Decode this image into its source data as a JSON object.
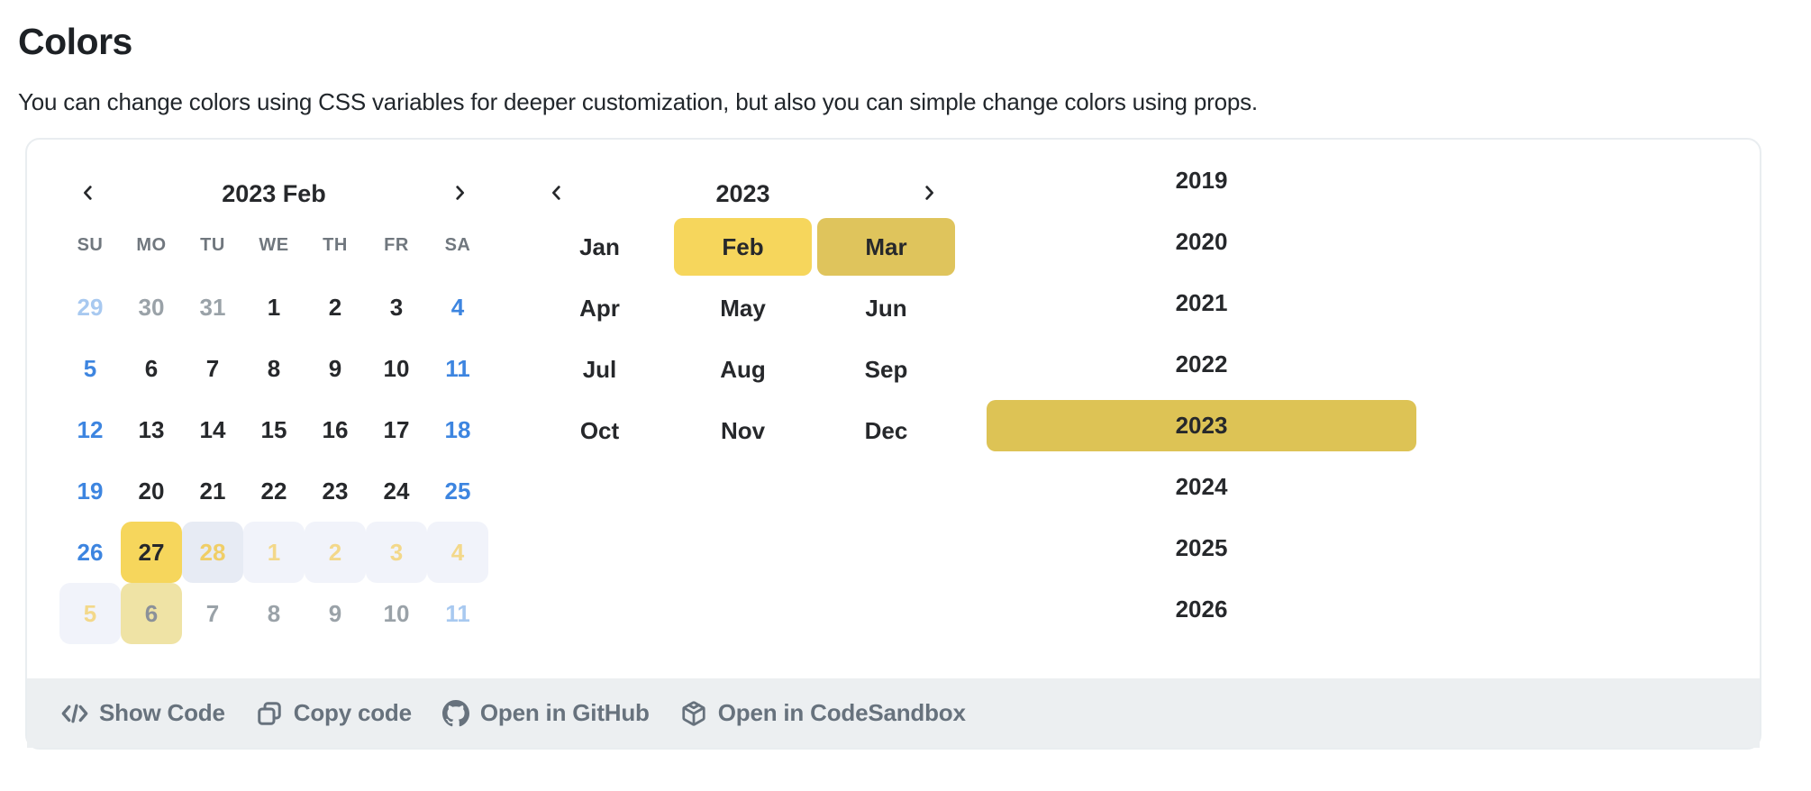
{
  "page": {
    "title": "Colors",
    "description": "You can change colors using CSS variables for deeper customization, but also you can simple change colors using props."
  },
  "colors": {
    "accent_yellow": "#f6d65c",
    "accent_khaki": "#ddc355",
    "month_end_yellow": "#dfc45c",
    "range_first_bg": "#e7ebf4",
    "range_mid_bg": "#f1f3fa",
    "range_end_bg": "#efe3a5",
    "weekend_blue": "#3d85e0",
    "muted_weekend_blue": "#a8c9f0",
    "muted_gray": "#9aa2a8",
    "toolbar_bg": "#eceff1",
    "toolbar_text": "#67727d"
  },
  "day_calendar": {
    "prev_icon": "chevron-left-icon",
    "next_icon": "chevron-right-icon",
    "title": "2023 Feb",
    "weekdays": [
      "SU",
      "MO",
      "TU",
      "WE",
      "TH",
      "FR",
      "SA"
    ],
    "cells": [
      {
        "label": "29",
        "type": "muted-weekend"
      },
      {
        "label": "30",
        "type": "muted"
      },
      {
        "label": "31",
        "type": "muted"
      },
      {
        "label": "1",
        "type": "day"
      },
      {
        "label": "2",
        "type": "day"
      },
      {
        "label": "3",
        "type": "day"
      },
      {
        "label": "4",
        "type": "weekend"
      },
      {
        "label": "5",
        "type": "weekend"
      },
      {
        "label": "6",
        "type": "day"
      },
      {
        "label": "7",
        "type": "day"
      },
      {
        "label": "8",
        "type": "day"
      },
      {
        "label": "9",
        "type": "day"
      },
      {
        "label": "10",
        "type": "day"
      },
      {
        "label": "11",
        "type": "weekend"
      },
      {
        "label": "12",
        "type": "weekend"
      },
      {
        "label": "13",
        "type": "day"
      },
      {
        "label": "14",
        "type": "day"
      },
      {
        "label": "15",
        "type": "day"
      },
      {
        "label": "16",
        "type": "day"
      },
      {
        "label": "17",
        "type": "day"
      },
      {
        "label": "18",
        "type": "weekend"
      },
      {
        "label": "19",
        "type": "weekend"
      },
      {
        "label": "20",
        "type": "day"
      },
      {
        "label": "21",
        "type": "day"
      },
      {
        "label": "22",
        "type": "day"
      },
      {
        "label": "23",
        "type": "day"
      },
      {
        "label": "24",
        "type": "day"
      },
      {
        "label": "25",
        "type": "weekend"
      },
      {
        "label": "26",
        "type": "weekend"
      },
      {
        "label": "27",
        "type": "range-start"
      },
      {
        "label": "28",
        "type": "range-first"
      },
      {
        "label": "1",
        "type": "range-mid"
      },
      {
        "label": "2",
        "type": "range-mid"
      },
      {
        "label": "3",
        "type": "range-mid"
      },
      {
        "label": "4",
        "type": "range-mid"
      },
      {
        "label": "5",
        "type": "range-mid"
      },
      {
        "label": "6",
        "type": "range-end"
      },
      {
        "label": "7",
        "type": "muted"
      },
      {
        "label": "8",
        "type": "muted"
      },
      {
        "label": "9",
        "type": "muted"
      },
      {
        "label": "10",
        "type": "muted"
      },
      {
        "label": "11",
        "type": "muted-weekend"
      }
    ]
  },
  "month_calendar": {
    "prev_icon": "chevron-left-icon",
    "next_icon": "chevron-right-icon",
    "title": "2023",
    "months": [
      {
        "label": "Jan",
        "state": "normal"
      },
      {
        "label": "Feb",
        "state": "start"
      },
      {
        "label": "Mar",
        "state": "end"
      },
      {
        "label": "Apr",
        "state": "normal"
      },
      {
        "label": "May",
        "state": "normal"
      },
      {
        "label": "Jun",
        "state": "normal"
      },
      {
        "label": "Jul",
        "state": "normal"
      },
      {
        "label": "Aug",
        "state": "normal"
      },
      {
        "label": "Sep",
        "state": "normal"
      },
      {
        "label": "Oct",
        "state": "normal"
      },
      {
        "label": "Nov",
        "state": "normal"
      },
      {
        "label": "Dec",
        "state": "normal"
      }
    ]
  },
  "year_list": {
    "years": [
      "2019",
      "2020",
      "2021",
      "2022",
      "2023",
      "2024",
      "2025",
      "2026"
    ],
    "selected": "2023"
  },
  "toolbar": {
    "show_code_label": "Show Code",
    "copy_code_label": "Copy code",
    "github_label": "Open in GitHub",
    "codesandbox_label": "Open in CodeSandbox"
  }
}
